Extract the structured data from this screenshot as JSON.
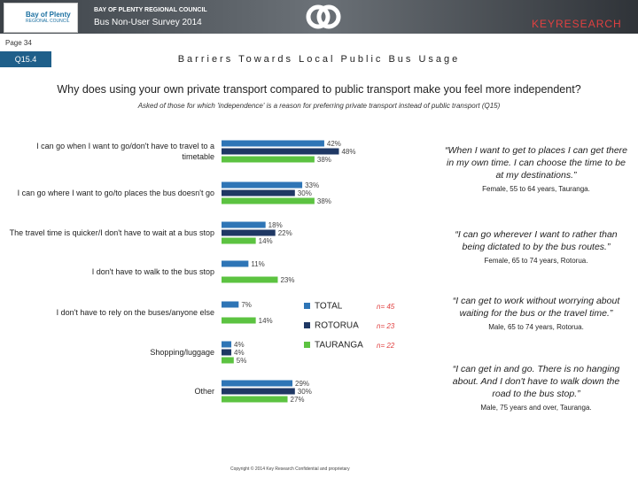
{
  "header": {
    "council": "BAY OF PLENTY REGIONAL COUNCIL",
    "survey": "Bus Non-User Survey 2014",
    "logo_left": "Bay of Plenty",
    "logo_left_sub": "REGIONAL COUNCIL",
    "logo_right": "KEYRESEARCH",
    "page": "Page 34",
    "question_code": "Q15.4",
    "section_title": "Barriers Towards Local Public Bus Usage"
  },
  "chart_data": {
    "type": "bar",
    "orientation": "horizontal",
    "title": "Why does using your own private transport compared to public transport make you feel more independent?",
    "subtitle": "Asked of those for which 'independence' is a reason for preferring private transport instead of public transport (Q15)",
    "categories": [
      "I can go when I want to go/don't have to travel to a timetable",
      "I can go where I want to go/to places the bus doesn't go",
      "The travel time is quicker/I don't have to wait at a bus stop",
      "I don't have to walk to the bus stop",
      "I don't have to rely on the buses/anyone else",
      "Shopping/luggage",
      "Other"
    ],
    "series": [
      {
        "name": "TOTAL",
        "color": "#2e75b6",
        "base_label": "n= 45",
        "values": [
          42,
          33,
          18,
          11,
          7,
          4,
          29
        ],
        "value_labels": [
          "42%",
          "33%",
          "18%",
          "11%",
          "7%",
          "4%",
          "29%"
        ]
      },
      {
        "name": "ROTORUA",
        "color": "#1f3864",
        "base_label": "n= 23",
        "values": [
          48,
          30,
          22,
          null,
          null,
          4,
          30
        ],
        "value_labels": [
          "48%",
          "30%",
          "22%",
          null,
          null,
          "4%",
          "30%"
        ]
      },
      {
        "name": "TAURANGA",
        "color": "#5cc341",
        "base_label": "n= 22",
        "values": [
          38,
          38,
          14,
          23,
          14,
          5,
          27
        ],
        "value_labels": [
          "38%",
          "38%",
          "14%",
          "23%",
          "14%",
          "5%",
          "27%"
        ]
      }
    ]
  },
  "quotes": [
    {
      "text": "“When I want to get to places I can get there in my own time. I can choose the time to be at my destinations.”",
      "source": "Female, 55 to 64 years, Tauranga."
    },
    {
      "text": "“I can go wherever I want to rather than being dictated to by the bus routes.”",
      "source": "Female, 65 to 74 years, Rotorua."
    },
    {
      "text": "“I can get to work without worrying about waiting for the bus or the travel time.”",
      "source": "Male, 65 to 74 years, Rotorua."
    },
    {
      "text": "“I can get in and go. There is no hanging about. And I don't have to walk down the road to the bus stop.”",
      "source": "Male, 75 years and over, Tauranga."
    }
  ],
  "footer": "Copyright © 2014 Key Research Confidential and proprietary"
}
